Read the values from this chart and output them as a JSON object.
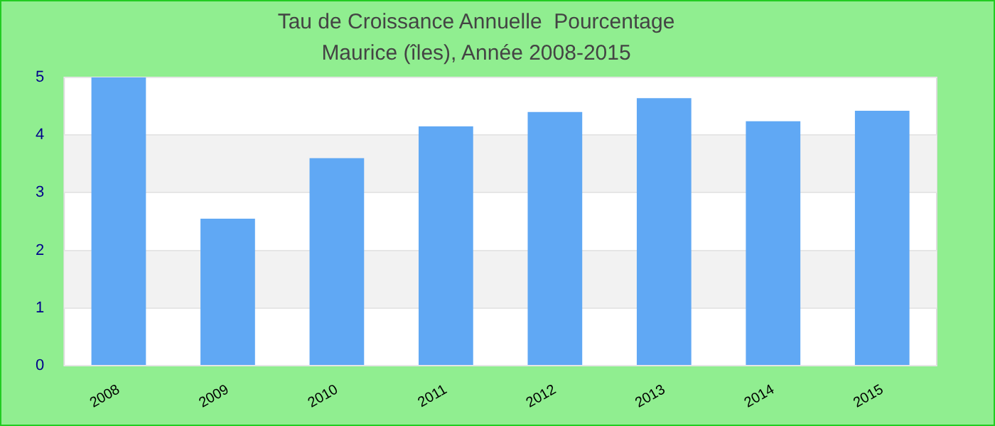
{
  "chart_data": {
    "type": "bar",
    "title": "Tau de Croissance Annuelle  Pourcentage",
    "subtitle": "Maurice (îles), Année 2008-2015",
    "categories": [
      "2008",
      "2009",
      "2010",
      "2011",
      "2012",
      "2013",
      "2014",
      "2015"
    ],
    "values": [
      5.0,
      2.55,
      3.6,
      4.15,
      4.4,
      4.64,
      4.24,
      4.42
    ],
    "color": "#60a8f4",
    "ylim": [
      0,
      5
    ],
    "yticks": [
      0,
      1,
      2,
      3,
      4,
      5
    ],
    "grid": "y"
  }
}
